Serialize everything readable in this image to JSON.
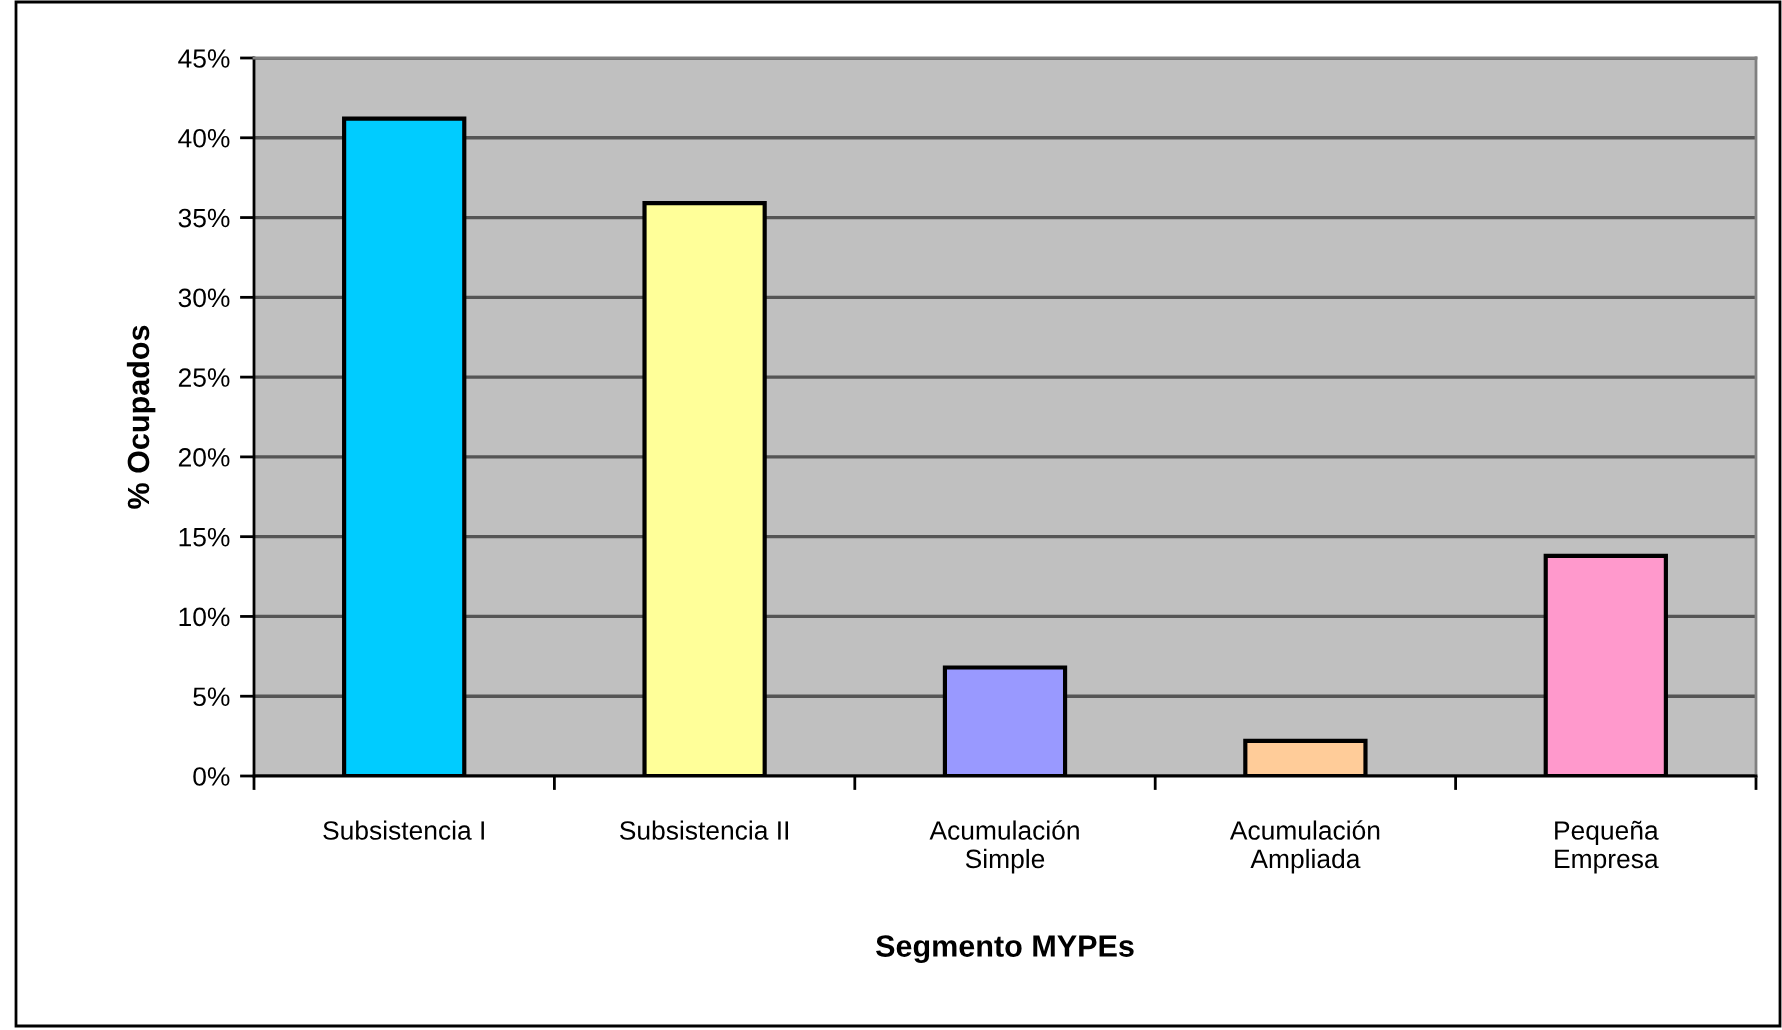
{
  "chart_data": {
    "type": "bar",
    "categories": [
      "Subsistencia I",
      "Subsistencia II",
      "Acumulación\nSimple",
      "Acumulación\nAmpliada",
      "Pequeña\nEmpresa"
    ],
    "values": [
      41.2,
      35.9,
      6.8,
      2.2,
      13.8
    ],
    "colors": [
      "#00ccff",
      "#ffff99",
      "#9999ff",
      "#ffcc99",
      "#ff99cc"
    ],
    "xlabel": "Segmento MYPEs",
    "ylabel": "% Ocupados",
    "ylim": [
      0,
      45
    ],
    "yticks": [
      {
        "value": 0,
        "label": "0%"
      },
      {
        "value": 5,
        "label": "5%"
      },
      {
        "value": 10,
        "label": "10%"
      },
      {
        "value": 15,
        "label": "15%"
      },
      {
        "value": 20,
        "label": "20%"
      },
      {
        "value": 25,
        "label": "25%"
      },
      {
        "value": 30,
        "label": "30%"
      },
      {
        "value": 35,
        "label": "35%"
      },
      {
        "value": 40,
        "label": "40%"
      },
      {
        "value": 45,
        "label": "45%"
      }
    ],
    "grid": "y",
    "legend": false
  }
}
